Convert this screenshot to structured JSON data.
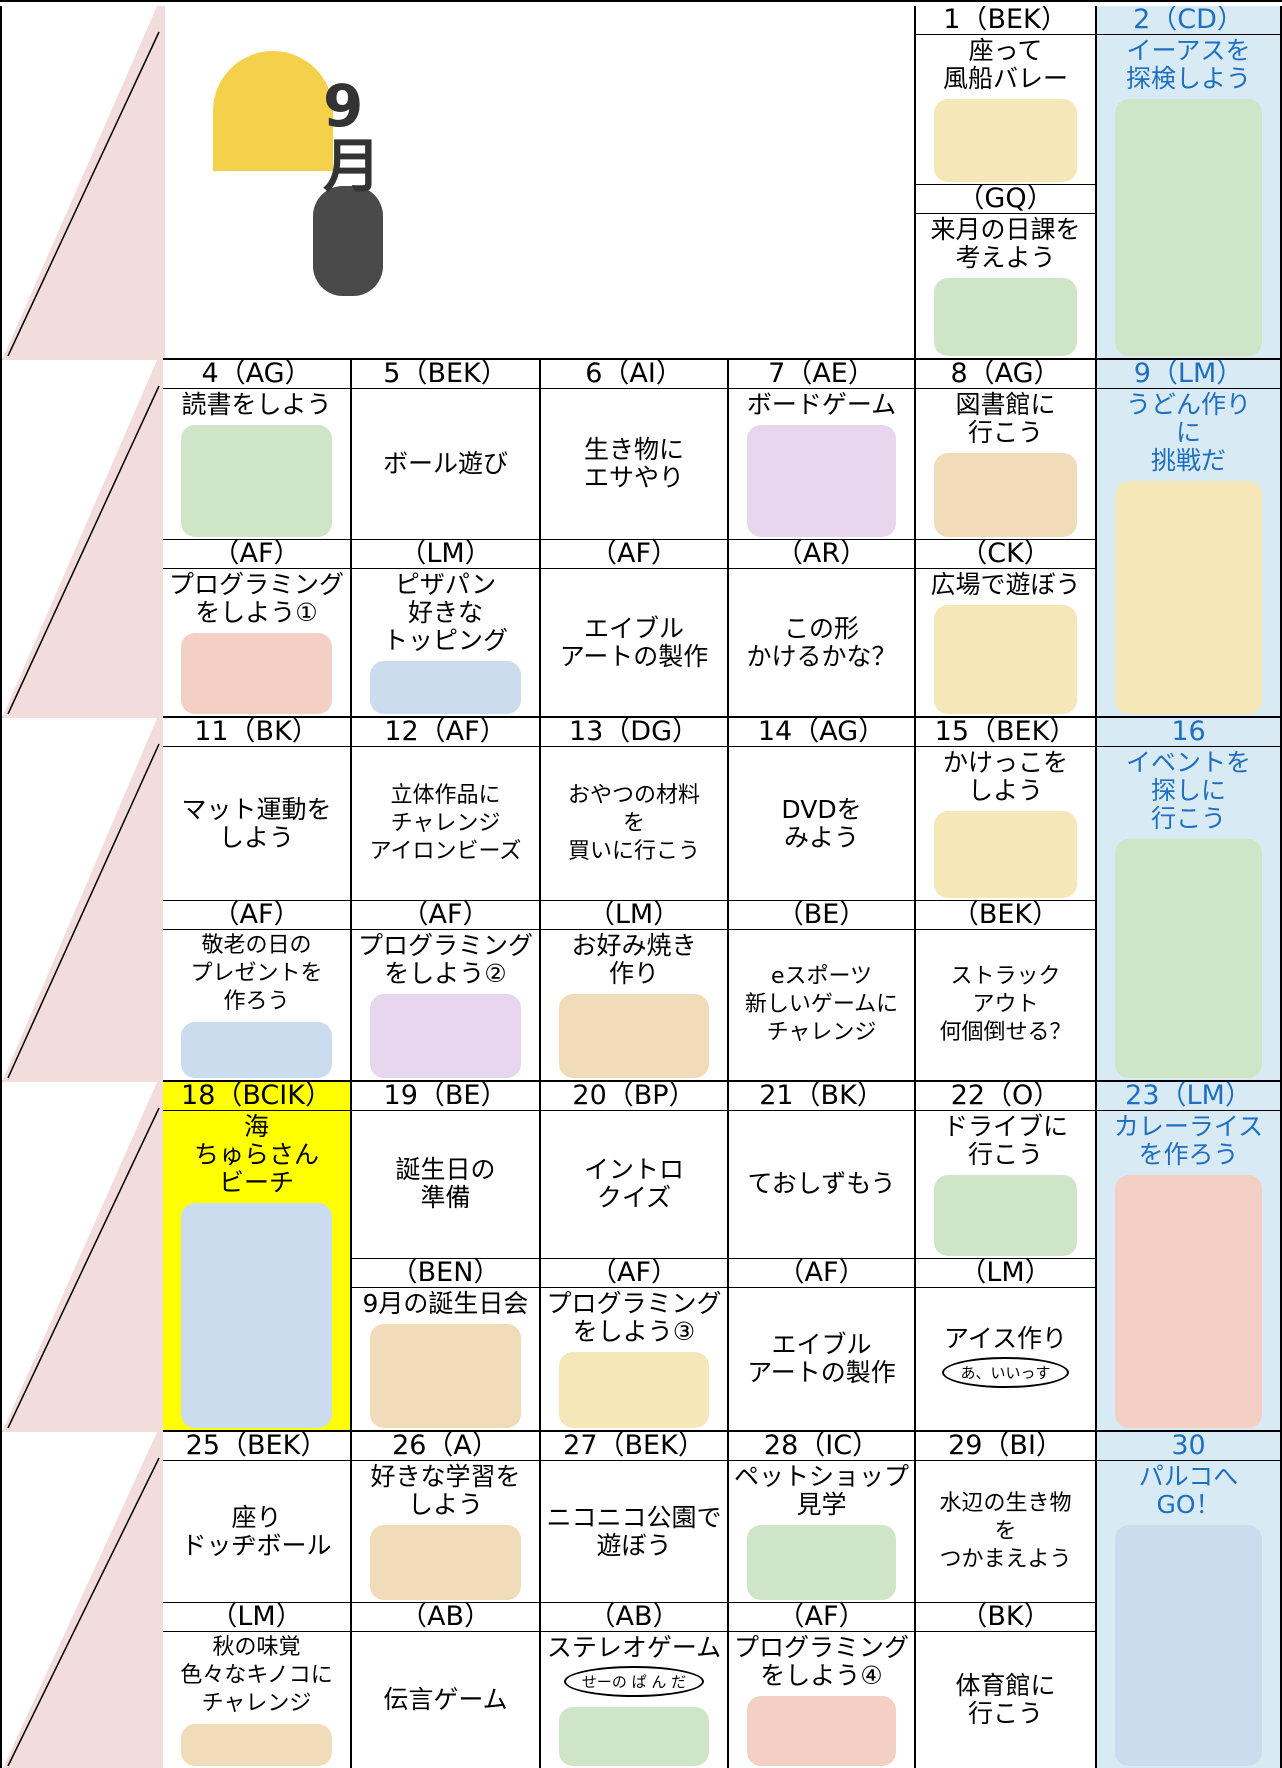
{
  "banner": "9月",
  "weeks": [
    {
      "days": [
        {
          "date": "1（BEK）",
          "sessions": [
            {
              "text": "座って\n風船バレー"
            },
            {
              "label": "（GQ）",
              "text": "来月の日課を\n考えよう"
            }
          ]
        },
        {
          "date": "2（CD）",
          "sessions": [
            {
              "text": "イーアスを\n探検しよう"
            }
          ]
        }
      ]
    },
    {
      "days": [
        {
          "date": "4（AG）",
          "sessions": [
            {
              "text": "読書をしよう"
            },
            {
              "label": "（AF）",
              "text": "プログラミング\nをしよう①"
            }
          ]
        },
        {
          "date": "5（BEK）",
          "sessions": [
            {
              "text": "ボール遊び"
            },
            {
              "label": "（LM）",
              "text": "ピザパン\n好きな\nトッピング"
            }
          ]
        },
        {
          "date": "6（AI）",
          "sessions": [
            {
              "text": "生き物に\nエサやり"
            },
            {
              "label": "（AF）",
              "text": "エイブル\nアートの製作"
            }
          ]
        },
        {
          "date": "7（AE）",
          "sessions": [
            {
              "text": "ボードゲーム"
            },
            {
              "label": "（AR）",
              "text": "この形\nかけるかな？"
            }
          ]
        },
        {
          "date": "8（AG）",
          "sessions": [
            {
              "text": "図書館に\n行こう"
            },
            {
              "label": "（CK）",
              "text": "広場で遊ぼう"
            }
          ]
        },
        {
          "date": "9（LM）",
          "sessions": [
            {
              "text": "うどん作り\nに\n挑戦だ"
            }
          ]
        }
      ]
    },
    {
      "days": [
        {
          "date": "11（BK）",
          "sessions": [
            {
              "text": "マット運動を\nしよう"
            },
            {
              "label": "（AF）",
              "text": "敬老の日の\nプレゼントを\n作ろう"
            }
          ]
        },
        {
          "date": "12（AF）",
          "sessions": [
            {
              "text": "立体作品に\nチャレンジ\nアイロンビーズ"
            },
            {
              "label": "（AF）",
              "text": "プログラミング\nをしよう②"
            }
          ]
        },
        {
          "date": "13（DG）",
          "sessions": [
            {
              "text": "おやつの材料\nを\n買いに行こう"
            },
            {
              "label": "（LM）",
              "text": "お好み焼き\n作り"
            }
          ]
        },
        {
          "date": "14（AG）",
          "sessions": [
            {
              "text": "DVDを\nみよう"
            },
            {
              "label": "（BE）",
              "text": "eスポーツ\n新しいゲームに\nチャレンジ"
            }
          ]
        },
        {
          "date": "15（BEK）",
          "sessions": [
            {
              "text": "かけっこを\nしよう"
            },
            {
              "label": "（BEK）",
              "text": "ストラック\nアウト\n何個倒せる？"
            }
          ]
        },
        {
          "date": "16",
          "sessions": [
            {
              "text": "イベントを\n探しに\n行こう"
            }
          ]
        }
      ]
    },
    {
      "days": [
        {
          "date": "18（BCIK）",
          "sessions": [
            {
              "text": "海\nちゅらさん\nビーチ"
            }
          ]
        },
        {
          "date": "19（BE）",
          "sessions": [
            {
              "text": "誕生日の\n準備"
            },
            {
              "label": "（BEN）",
              "text": "9月の誕生日会"
            }
          ]
        },
        {
          "date": "20（BP）",
          "sessions": [
            {
              "text": "イントロ\nクイズ"
            },
            {
              "label": "（AF）",
              "text": "プログラミング\nをしよう③"
            }
          ]
        },
        {
          "date": "21（BK）",
          "sessions": [
            {
              "text": "ておしずもう"
            },
            {
              "label": "（AF）",
              "text": "エイブル\nアートの製作"
            }
          ]
        },
        {
          "date": "22（O）",
          "sessions": [
            {
              "text": "ドライブに\n行こう"
            },
            {
              "label": "（LM）",
              "text": "アイス作り",
              "note": "あ、いいっす"
            }
          ]
        },
        {
          "date": "23（LM）",
          "sessions": [
            {
              "text": "カレーライス\nを作ろう"
            }
          ]
        }
      ]
    },
    {
      "days": [
        {
          "date": "25（BEK）",
          "sessions": [
            {
              "text": "座り\nドッヂボール"
            },
            {
              "label": "（LM）",
              "text": "秋の味覚\n色々なキノコに\nチャレンジ"
            }
          ]
        },
        {
          "date": "26（A）",
          "sessions": [
            {
              "text": "好きな学習を\nしよう"
            },
            {
              "label": "（AB）",
              "text": "伝言ゲーム"
            }
          ]
        },
        {
          "date": "27（BEK）",
          "sessions": [
            {
              "text": "ニコニコ公園で\n遊ぼう"
            },
            {
              "label": "（AB）",
              "text": "ステレオゲーム",
              "note": "せーの ぱ ん だ"
            }
          ]
        },
        {
          "date": "28（IC）",
          "sessions": [
            {
              "text": "ペットショップ\n見学"
            },
            {
              "label": "（AF）",
              "text": "プログラミング\nをしよう④"
            }
          ]
        },
        {
          "date": "29（BI）",
          "sessions": [
            {
              "text": "水辺の生き物\nを\nつかまえよう"
            },
            {
              "label": "（BK）",
              "text": "体育館に\n行こう"
            }
          ]
        },
        {
          "date": "30",
          "sessions": [
            {
              "text": "パルコへ\nGO！"
            }
          ]
        }
      ]
    }
  ]
}
